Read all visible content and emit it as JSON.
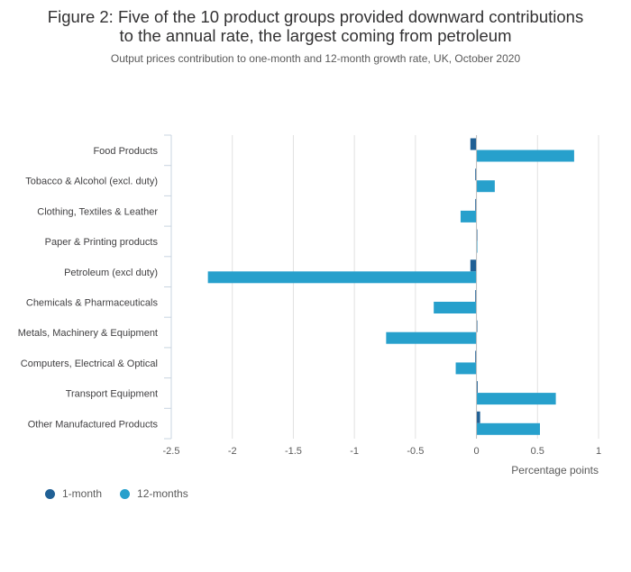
{
  "header": {
    "title_line1": "Figure 2: Five of the 10 product groups provided downward contributions",
    "title_line2": "to the annual rate, the largest coming from petroleum",
    "subtitle": "Output prices contribution to one-month and 12-month growth rate, UK, October 2020"
  },
  "colors": {
    "one_month": "#206095",
    "twelve_months": "#27a0cc",
    "grid": "#e1e1e1",
    "axis": "#c8d4e0"
  },
  "chart_data": {
    "type": "bar",
    "orientation": "horizontal",
    "categories": [
      "Food Products",
      "Tobacco & Alcohol (excl. duty)",
      "Clothing, Textiles & Leather",
      "Paper & Printing products",
      "Petroleum (excl duty)",
      "Chemicals & Pharmaceuticals",
      "Metals, Machinery & Equipment",
      "Computers, Electrical & Optical",
      "Transport Equipment",
      "Other Manufactured Products"
    ],
    "series": [
      {
        "name": "1-month",
        "values": [
          -0.05,
          -0.01,
          -0.01,
          0.0,
          -0.05,
          -0.01,
          0.0,
          -0.01,
          0.01,
          0.03
        ]
      },
      {
        "name": "12-months",
        "values": [
          0.8,
          0.15,
          -0.13,
          0.0,
          -2.2,
          -0.35,
          -0.74,
          -0.17,
          0.65,
          0.52
        ]
      }
    ],
    "x_ticks": [
      "-2.5",
      "-2",
      "-1.5",
      "-1",
      "-0.5",
      "0",
      "0.5",
      "1"
    ],
    "xlim": [
      -2.5,
      1
    ],
    "xlabel": "Percentage points",
    "grid": true,
    "legend_position": "bottom-left"
  }
}
